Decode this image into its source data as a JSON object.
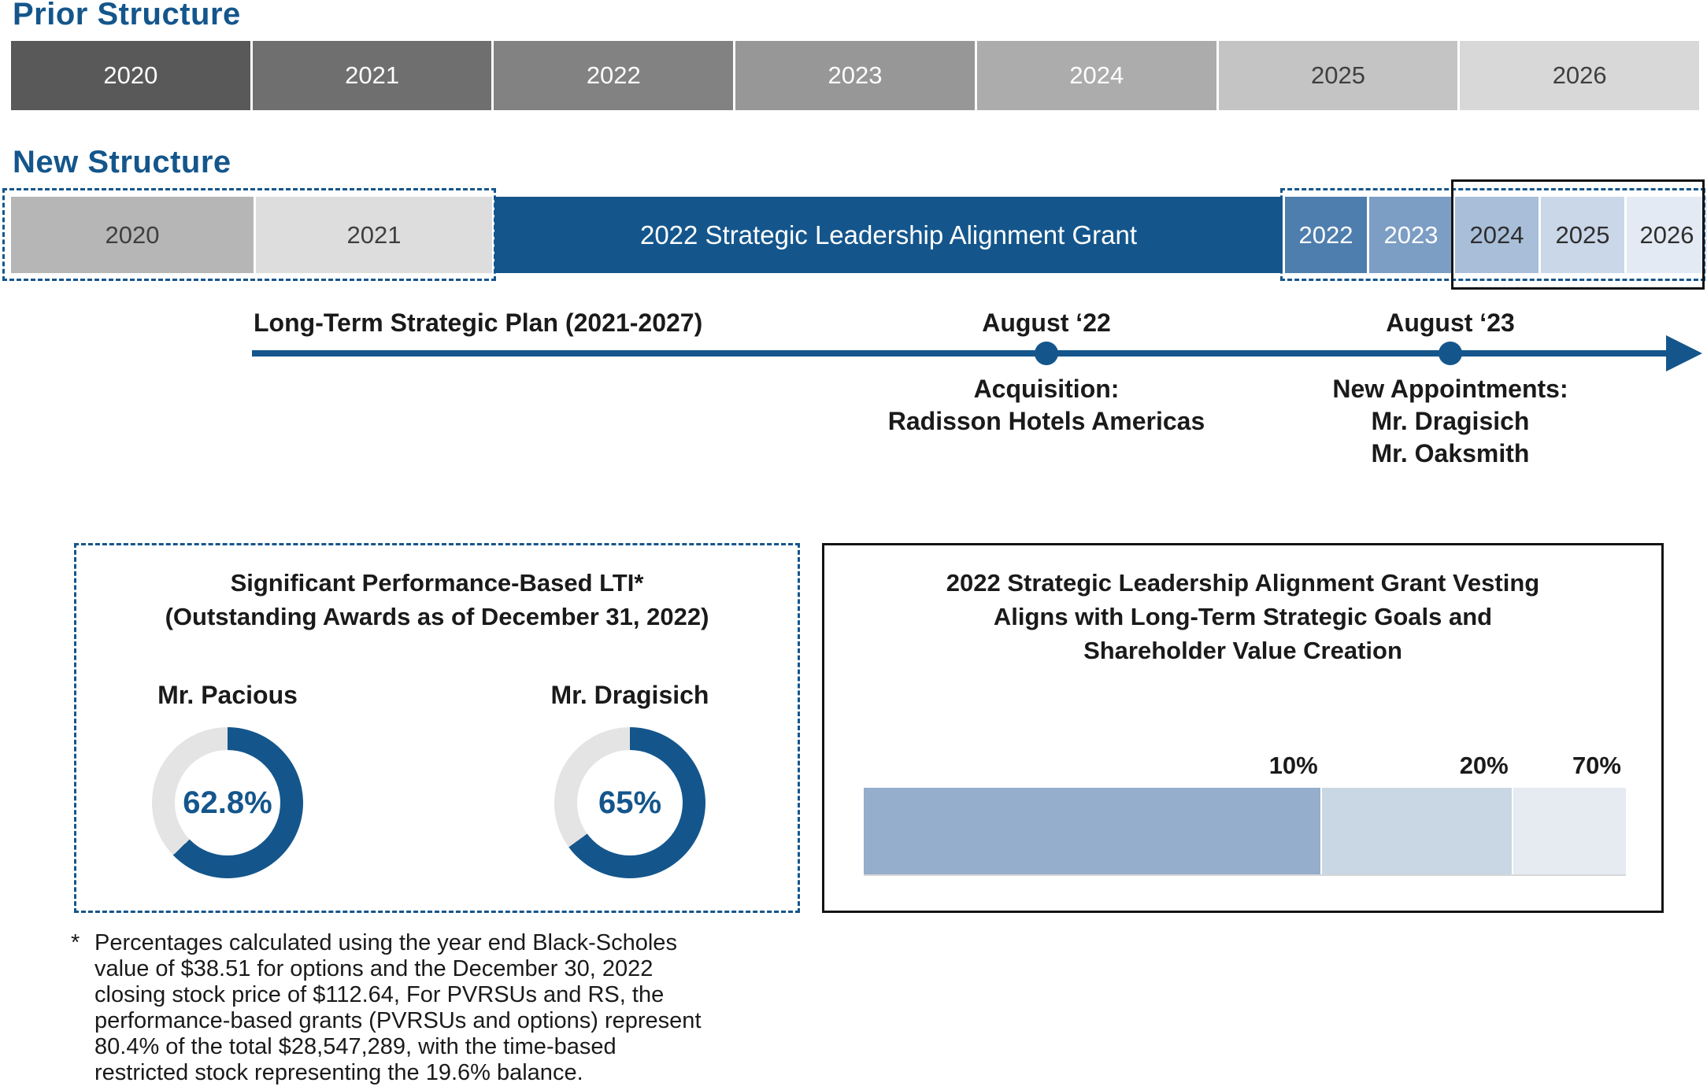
{
  "colors": {
    "brand_blue": "#14568C",
    "donut_track": "#E4E4E4",
    "outline_black": "#141414",
    "prior_grays": [
      "#595959",
      "#6F6F6F",
      "#828282",
      "#979797",
      "#ACACAC",
      "#C4C4C4",
      "#D8D8D8"
    ],
    "new_grays": [
      "#B6B6B6",
      "#DDDDDD"
    ],
    "new_blues": [
      "#4E7EAD",
      "#7C9DC4",
      "#A9BFD9",
      "#CAD7E8",
      "#E3EAF3"
    ]
  },
  "prior": {
    "heading": "Prior Structure",
    "years": [
      "2020",
      "2021",
      "2022",
      "2023",
      "2024",
      "2025",
      "2026"
    ]
  },
  "new_structure": {
    "heading": "New Structure",
    "pre_years": [
      "2020",
      "2021"
    ],
    "grant_label": "2022 Strategic Leadership Alignment Grant",
    "post_years": [
      "2022",
      "2023",
      "2024",
      "2025",
      "2026"
    ]
  },
  "timeline": {
    "plan_label": "Long-Term Strategic Plan (2021-2027)",
    "milestones": [
      {
        "date": "August ‘22",
        "detail": "Acquisition:\nRadisson Hotels Americas"
      },
      {
        "date": "August ‘23",
        "detail": "New Appointments:\nMr. Dragisich\nMr. Oaksmith"
      }
    ]
  },
  "lti_panel": {
    "title": "Significant Performance-Based LTI*\n(Outstanding Awards as of December 31, 2022)",
    "donuts": [
      {
        "name": "Mr. Pacious",
        "label": "62.8%",
        "percent": 62.8
      },
      {
        "name": "Mr. Dragisich",
        "label": "65%",
        "percent": 65
      }
    ]
  },
  "vesting_panel": {
    "title": "2022 Strategic Leadership Alignment Grant Vesting\nAligns with Long-Term Strategic Goals and\nShareholder Value Creation",
    "segments": [
      {
        "label": "10%",
        "width_pct": 60.2,
        "color": "#94AECB"
      },
      {
        "label": "20%",
        "width_pct": 25.0,
        "color": "#C9D6E4"
      },
      {
        "label": "70%",
        "width_pct": 14.8,
        "color": "#E6EBF2"
      }
    ]
  },
  "footnote": {
    "marker": "*",
    "text": "Percentages calculated using the year end Black-Scholes\nvalue of $38.51 for options and the December 30, 2022\nclosing stock price of $112.64, For PVRSUs and RS, the\nperformance-based grants (PVRSUs and options) represent\n80.4% of the total $28,547,289, with the time-based\nrestricted stock representing the 19.6% balance."
  },
  "chart_data": [
    {
      "type": "pie",
      "title": "Mr. Pacious",
      "values": [
        62.8,
        37.2
      ],
      "labels": [
        "62.8%",
        ""
      ]
    },
    {
      "type": "pie",
      "title": "Mr. Dragisich",
      "values": [
        65,
        35
      ],
      "labels": [
        "65%",
        ""
      ]
    },
    {
      "type": "bar",
      "title": "2022 Strategic Leadership Alignment Grant Vesting",
      "categories": [
        "10%",
        "20%",
        "70%"
      ],
      "values": [
        10,
        20,
        70
      ]
    }
  ]
}
